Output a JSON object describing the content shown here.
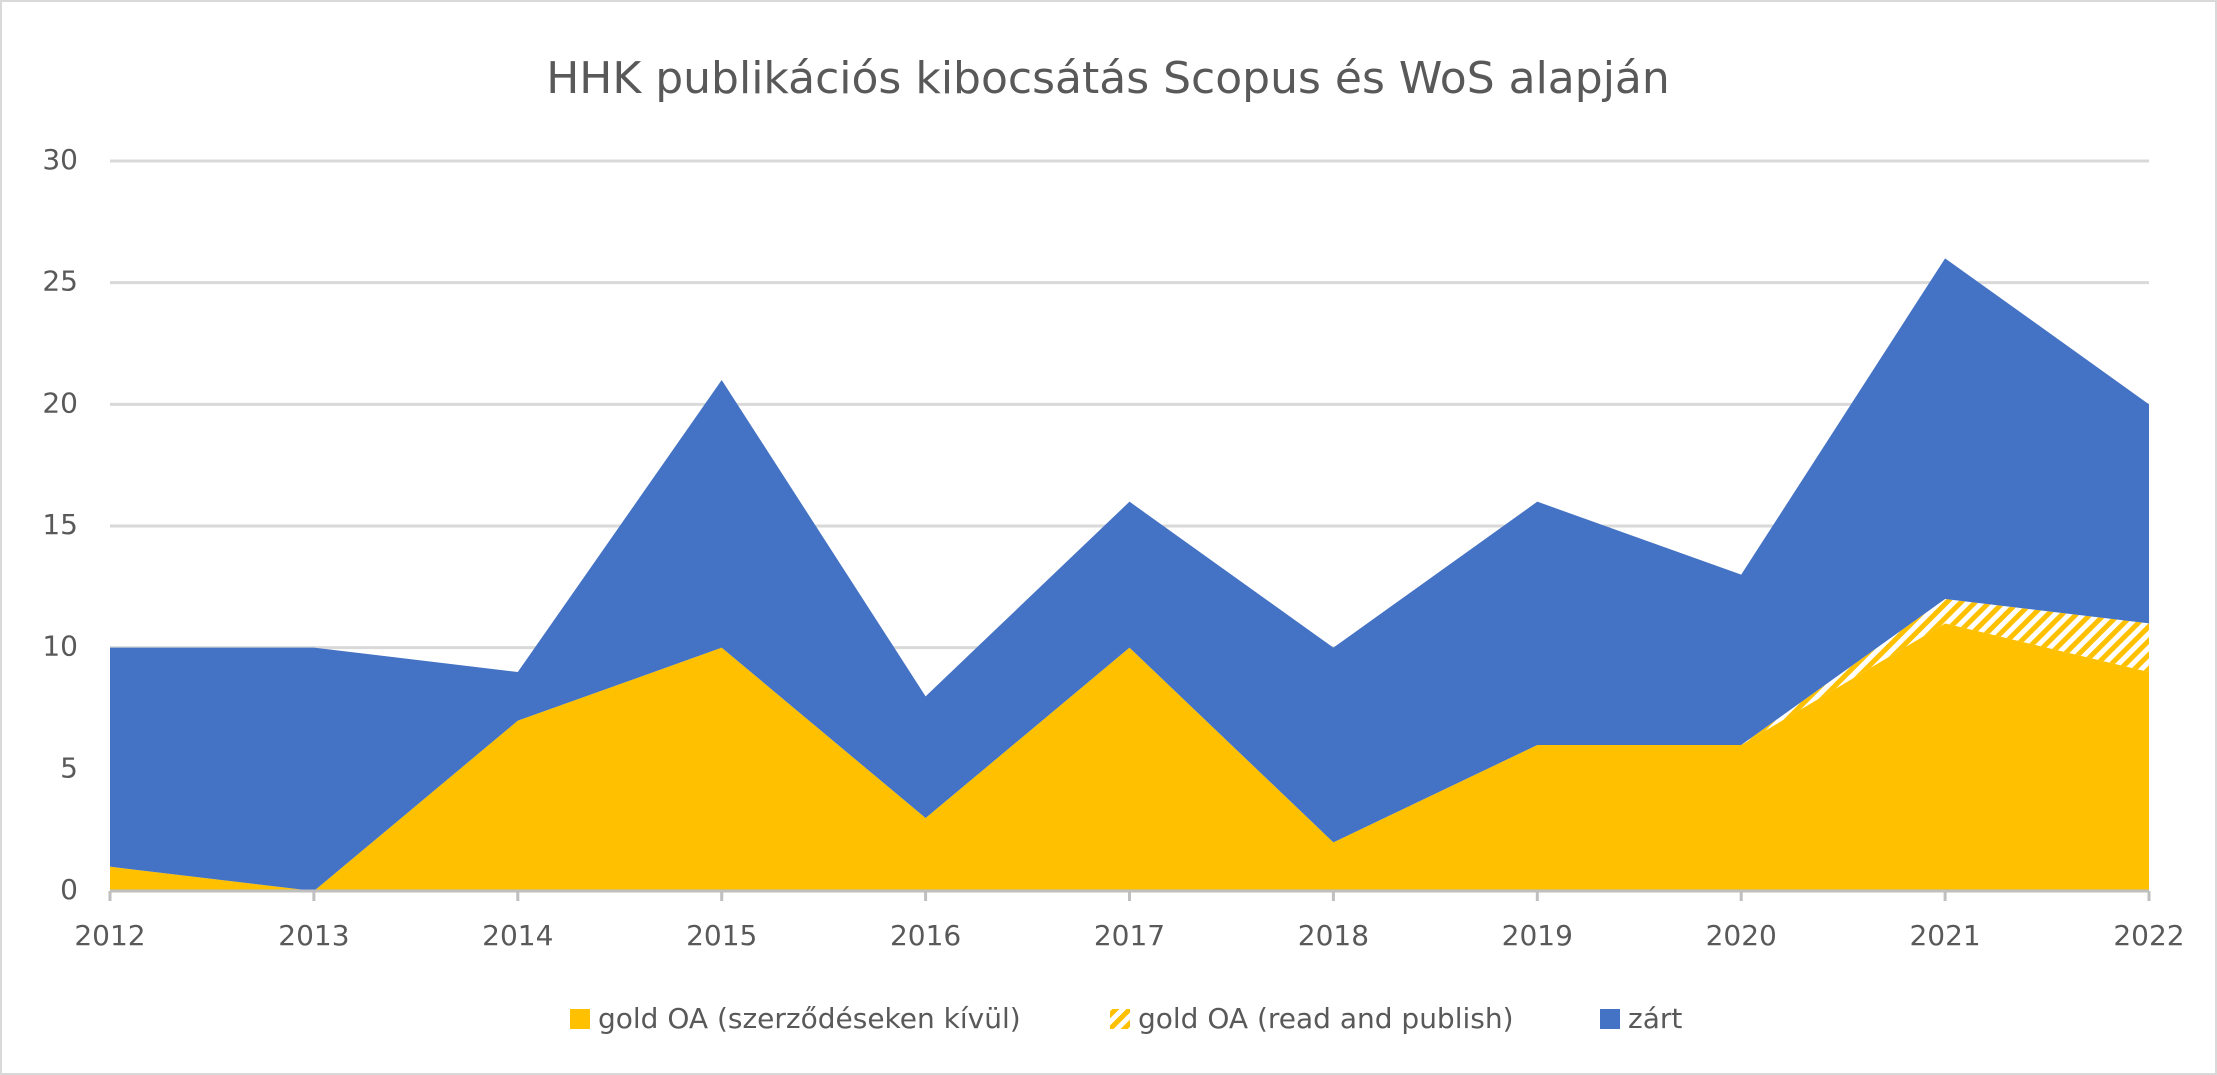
{
  "chart_data": {
    "type": "stacked_area",
    "title": "HHK publikációs kibocsátás Scopus és WoS alapján",
    "categories": [
      "2012",
      "2013",
      "2014",
      "2015",
      "2016",
      "2017",
      "2018",
      "2019",
      "2020",
      "2021",
      "2022"
    ],
    "series": [
      {
        "name": "gold OA (szerződéseken kívül)",
        "color": "#ffc000",
        "values": [
          1,
          0,
          7,
          10,
          3,
          10,
          2,
          6,
          6,
          11,
          9
        ]
      },
      {
        "name": "gold OA (read and publish)",
        "color": "#ffc000",
        "pattern": "hatch",
        "values": [
          0,
          0,
          0,
          0,
          0,
          0,
          0,
          0,
          0,
          1,
          2
        ]
      },
      {
        "name": "zárt",
        "color": "#4472c4",
        "values": [
          9,
          10,
          2,
          11,
          5,
          6,
          8,
          10,
          7,
          14,
          9
        ]
      }
    ],
    "ylim": [
      0,
      30
    ],
    "yticks": [
      0,
      5,
      10,
      15,
      20,
      25,
      30
    ],
    "grid": true,
    "legend": "bottom"
  }
}
